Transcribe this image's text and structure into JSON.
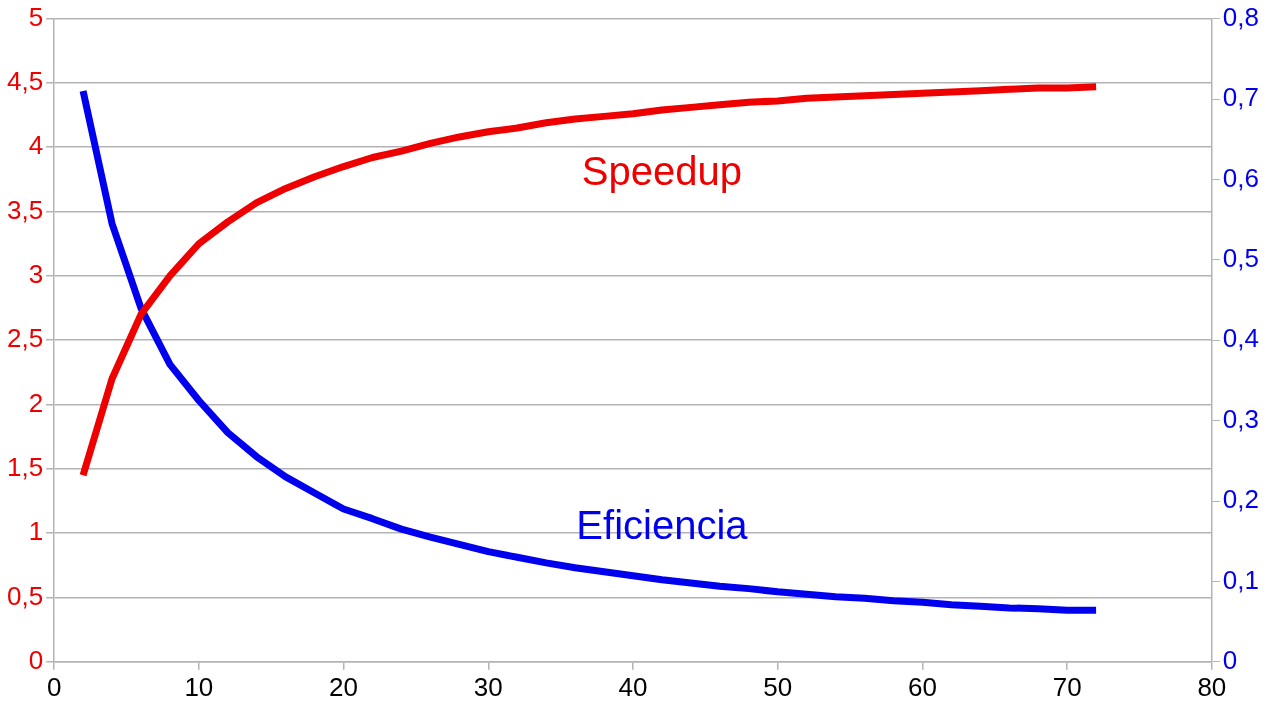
{
  "chart_data": {
    "type": "line",
    "x": [
      2,
      4,
      6,
      8,
      10,
      12,
      14,
      16,
      18,
      20,
      22,
      24,
      26,
      28,
      30,
      32,
      34,
      36,
      38,
      40,
      42,
      44,
      46,
      48,
      50,
      52,
      54,
      56,
      58,
      60,
      62,
      64,
      66,
      68,
      70,
      72
    ],
    "series": [
      {
        "name": "Speedup",
        "color": "#ee0000",
        "values": [
          1.45,
          2.2,
          2.7,
          3.0,
          3.25,
          3.42,
          3.57,
          3.68,
          3.77,
          3.85,
          3.92,
          3.97,
          4.03,
          4.08,
          4.12,
          4.15,
          4.19,
          4.22,
          4.24,
          4.26,
          4.29,
          4.31,
          4.33,
          4.35,
          4.36,
          4.38,
          4.39,
          4.4,
          4.41,
          4.42,
          4.43,
          4.44,
          4.45,
          4.46,
          4.46,
          4.47
        ]
      },
      {
        "name": "Eficiencia",
        "color": "#0000ee",
        "axis": "y2",
        "values": [
          0.71,
          0.545,
          0.44,
          0.37,
          0.325,
          0.285,
          0.255,
          0.23,
          0.21,
          0.19,
          0.178,
          0.165,
          0.155,
          0.146,
          0.137,
          0.13,
          0.123,
          0.117,
          0.112,
          0.107,
          0.102,
          0.098,
          0.094,
          0.091,
          0.087,
          0.084,
          0.081,
          0.079,
          0.076,
          0.074,
          0.071,
          0.069,
          0.067,
          0.066,
          0.064,
          0.064
        ]
      }
    ],
    "xlim": [
      0,
      80
    ],
    "xticks": [
      0,
      10,
      20,
      30,
      40,
      50,
      60,
      70,
      80
    ],
    "ylim": [
      0,
      5
    ],
    "yticks": [
      0,
      {
        "value": 0.5,
        "label": "0,5"
      },
      1,
      {
        "value": 1.5,
        "label": "1,5"
      },
      2,
      {
        "value": 2.5,
        "label": "2,5"
      },
      3,
      {
        "value": 3.5,
        "label": "3,5"
      },
      4,
      {
        "value": 4.5,
        "label": "4,5"
      },
      5
    ],
    "y2lim": [
      0,
      0.8
    ],
    "y2ticks": [
      0,
      {
        "value": 0.1,
        "label": "0,1"
      },
      {
        "value": 0.2,
        "label": "0,2"
      },
      {
        "value": 0.3,
        "label": "0,3"
      },
      {
        "value": 0.4,
        "label": "0,4"
      },
      {
        "value": 0.5,
        "label": "0,5"
      },
      {
        "value": 0.6,
        "label": "0,6"
      },
      {
        "value": 0.7,
        "label": "0,7"
      },
      {
        "value": 0.8,
        "label": "0,8"
      }
    ],
    "grid": "y",
    "legend": false,
    "marker": "none",
    "line_style": "solid"
  }
}
